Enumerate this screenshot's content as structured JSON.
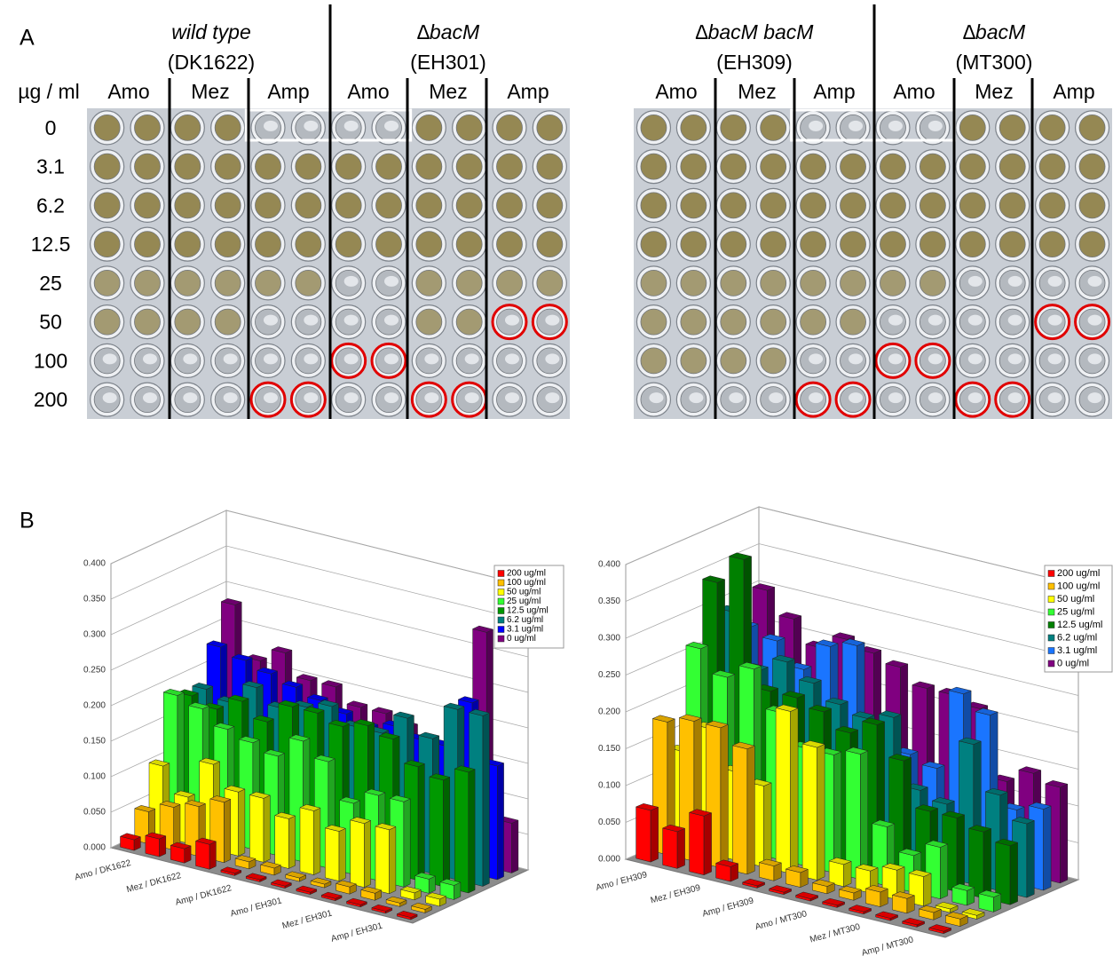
{
  "panel_a": {
    "label": "A",
    "unit_label": "µg / ml",
    "strains": [
      {
        "name": "wild type",
        "id": "(DK1622)"
      },
      {
        "name": "∆bacM",
        "id": "(EH301)"
      },
      {
        "name": "∆bacM bacM",
        "id": "(EH309)"
      },
      {
        "name": "∆bacM",
        "id": "(MT300)"
      }
    ],
    "antibiotics": [
      "Amo",
      "Mez",
      "Amp",
      "Amo",
      "Mez",
      "Amp",
      "Amo",
      "Mez",
      "Amp",
      "Amo",
      "Mez",
      "Amp"
    ],
    "concentrations": [
      0,
      3.1,
      6.2,
      12.5,
      25,
      50,
      100,
      200
    ]
  },
  "panel_b": {
    "label": "B"
  },
  "chart_data": [
    {
      "type": "bar3d",
      "grid": true,
      "legend": "upper right",
      "categories": [
        "Amo / DK1622",
        null,
        "Mez / DK1622",
        null,
        "Amp / DK1622",
        null,
        "Amo / EH301",
        null,
        "Mez / EH301",
        null,
        "Amp / EH301",
        null
      ],
      "ylim": [
        0,
        0.4
      ],
      "yticks": [
        {
          "value": 0,
          "label": "0.000"
        },
        {
          "value": 0.05,
          "label": "0.050"
        },
        {
          "value": 0.1,
          "label": "0.100"
        },
        {
          "value": 0.15,
          "label": "0.150"
        },
        {
          "value": 0.2,
          "label": "0.200"
        },
        {
          "value": 0.25,
          "label": "0.250"
        },
        {
          "value": 0.3,
          "label": "0.300"
        },
        {
          "value": 0.35,
          "label": "0.350"
        },
        {
          "value": 0.4,
          "label": "0.400"
        }
      ],
      "series": [
        {
          "name": "200 ug/ml",
          "color": "#ff0000",
          "values": [
            0.015,
            0.025,
            0.02,
            0.035,
            0.003,
            0.003,
            0.003,
            0.003,
            0.003,
            0.003,
            0.003,
            0.003
          ]
        },
        {
          "name": "100 ug/ml",
          "color": "#ffc000",
          "values": [
            0.045,
            0.06,
            0.07,
            0.085,
            0.01,
            0.01,
            0.005,
            0.005,
            0.01,
            0.01,
            0.005,
            0.005
          ]
        },
        {
          "name": "50 ug/ml",
          "color": "#ffff00",
          "values": [
            0.1,
            0.065,
            0.12,
            0.09,
            0.09,
            0.07,
            0.09,
            0.07,
            0.09,
            0.09,
            0.01,
            0.01
          ]
        },
        {
          "name": "25 ug/ml",
          "color": "#33ff33",
          "values": [
            0.19,
            0.18,
            0.16,
            0.15,
            0.14,
            0.17,
            0.15,
            0.1,
            0.12,
            0.12,
            0.02,
            0.02
          ]
        },
        {
          "name": "12.5 ug/ml",
          "color": "#009900",
          "values": [
            0.18,
            0.17,
            0.19,
            0.17,
            0.2,
            0.2,
            0.19,
            0.2,
            0.19,
            0.16,
            0.15,
            0.17
          ]
        },
        {
          "name": "6.2 ug/ml",
          "color": "#008080",
          "values": [
            0.18,
            0.17,
            0.2,
            0.18,
            0.19,
            0.2,
            0.18,
            0.18,
            0.21,
            0.19,
            0.24,
            0.24
          ]
        },
        {
          "name": "3.1 ug/ml",
          "color": "#0000ff",
          "values": [
            0.23,
            0.22,
            0.21,
            0.2,
            0.19,
            0.18,
            0.17,
            0.18,
            0.17,
            0.17,
            0.24,
            0.16
          ]
        },
        {
          "name": "0 ug/ml",
          "color": "#800080",
          "values": [
            0.28,
            0.21,
            0.23,
            0.2,
            0.2,
            0.18,
            0.18,
            0.17,
            0.15,
            0.15,
            0.33,
            0.07
          ]
        }
      ]
    },
    {
      "type": "bar3d",
      "grid": true,
      "legend": "upper right",
      "categories": [
        "Amo / EH309",
        null,
        "Mez / EH309",
        null,
        "Amp / EH309",
        null,
        "Amo / MT300",
        null,
        "Mez / MT300",
        null,
        "Amp / MT300",
        null
      ],
      "ylim": [
        0,
        0.4
      ],
      "yticks": [
        {
          "value": 0,
          "label": "0.000"
        },
        {
          "value": 0.05,
          "label": "0.050"
        },
        {
          "value": 0.1,
          "label": "0.100"
        },
        {
          "value": 0.15,
          "label": "0.150"
        },
        {
          "value": 0.2,
          "label": "0.200"
        },
        {
          "value": 0.25,
          "label": "0.250"
        },
        {
          "value": 0.3,
          "label": "0.300"
        },
        {
          "value": 0.35,
          "label": "0.350"
        },
        {
          "value": 0.4,
          "label": "0.400"
        }
      ],
      "series": [
        {
          "name": "200 ug/ml",
          "color": "#ff0000",
          "values": [
            0.07,
            0.05,
            0.08,
            0.02,
            0.003,
            0.003,
            0.003,
            0.003,
            0.003,
            0.003,
            0.003,
            0.003
          ]
        },
        {
          "name": "100 ug/ml",
          "color": "#ffc000",
          "values": [
            0.18,
            0.19,
            0.19,
            0.17,
            0.02,
            0.02,
            0.01,
            0.01,
            0.02,
            0.02,
            0.01,
            0.01
          ]
        },
        {
          "name": "50 ug/ml",
          "color": "#ffff00",
          "values": [
            0.13,
            0.17,
            0.12,
            0.11,
            0.22,
            0.18,
            0.03,
            0.03,
            0.04,
            0.04,
            0.005,
            0.005
          ]
        },
        {
          "name": "25 ug/ml",
          "color": "#33ff33",
          "values": [
            0.26,
            0.23,
            0.25,
            0.2,
            0.16,
            0.16,
            0.17,
            0.08,
            0.05,
            0.07,
            0.02,
            0.02
          ]
        },
        {
          "name": "12.5 ug/ml",
          "color": "#008000",
          "values": [
            0.34,
            0.38,
            0.21,
            0.21,
            0.2,
            0.18,
            0.2,
            0.16,
            0.1,
            0.1,
            0.09,
            0.08
          ]
        },
        {
          "name": "6.2 ug/ml",
          "color": "#008080",
          "values": [
            0.29,
            0.22,
            0.24,
            0.22,
            0.2,
            0.19,
            0.2,
            0.11,
            0.1,
            0.19,
            0.13,
            0.1
          ]
        },
        {
          "name": "3.1 ug/ml",
          "color": "#1a75ff",
          "values": [
            0.26,
            0.25,
            0.22,
            0.26,
            0.27,
            0.14,
            0.14,
            0.13,
            0.24,
            0.22,
            0.1,
            0.11
          ]
        },
        {
          "name": "0 ug/ml",
          "color": "#800080",
          "values": [
            0.3,
            0.27,
            0.24,
            0.26,
            0.25,
            0.24,
            0.22,
            0.22,
            0.21,
            0.12,
            0.14,
            0.13
          ]
        }
      ]
    }
  ]
}
